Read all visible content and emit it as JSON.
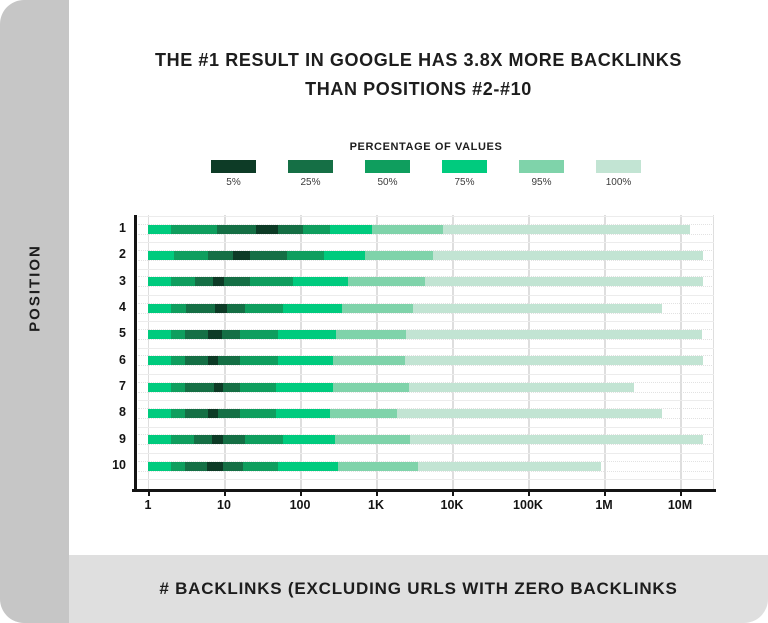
{
  "title": {
    "line1": "THE #1 RESULT IN GOOGLE HAS 3.8X MORE BACKLINKS",
    "line2": "THAN POSITIONS #2-#10"
  },
  "sidebar": {
    "label": "POSITION"
  },
  "footer": {
    "label": "# BACKLINKS (EXCLUDING URLS WITH ZERO BACKLINKS"
  },
  "legend": {
    "title": "PERCENTAGE OF VALUES",
    "items": [
      {
        "label": "5%",
        "color": "#0d3b26"
      },
      {
        "label": "25%",
        "color": "#156f45"
      },
      {
        "label": "50%",
        "color": "#0f9e5e"
      },
      {
        "label": "75%",
        "color": "#00cb7e"
      },
      {
        "label": "95%",
        "color": "#7fd3aa"
      },
      {
        "label": "100%",
        "color": "#c2e4d3"
      }
    ]
  },
  "chart_data": {
    "type": "bar",
    "variant": "nested-percentile-range-bars",
    "title": "THE #1 RESULT IN GOOGLE HAS 3.8X MORE BACKLINKS THAN POSITIONS #2-#10",
    "xlabel": "# BACKLINKS (EXCLUDING URLS WITH ZERO BACKLINKS",
    "ylabel": "POSITION",
    "x_scale": "log",
    "xlim": [
      1,
      31000000
    ],
    "grid": "vertical-decades",
    "legend_position": "top-center",
    "x_ticks": [
      {
        "label": "1",
        "value": 1
      },
      {
        "label": "10",
        "value": 10
      },
      {
        "label": "100",
        "value": 100
      },
      {
        "label": "1K",
        "value": 1000
      },
      {
        "label": "10K",
        "value": 10000
      },
      {
        "label": "100K",
        "value": 100000
      },
      {
        "label": "1M",
        "value": 1000000
      },
      {
        "label": "10M",
        "value": 10000000
      }
    ],
    "segment_band_order": [
      "75%",
      "50%",
      "25%",
      "5%",
      "25%",
      "50%",
      "75%",
      "95%",
      "100%"
    ],
    "rows": [
      {
        "position": "1",
        "band_boundaries": [
          1,
          2,
          8,
          26,
          51,
          110,
          250,
          890,
          7600,
          13500000
        ]
      },
      {
        "position": "2",
        "band_boundaries": [
          1,
          2.2,
          6.2,
          13,
          22,
          67,
          210,
          720,
          5700,
          20000000
        ]
      },
      {
        "position": "3",
        "band_boundaries": [
          1,
          2,
          4.2,
          7.2,
          10,
          22,
          82,
          430,
          4400,
          20000000
        ]
      },
      {
        "position": "4",
        "band_boundaries": [
          1,
          2,
          3.2,
          7.6,
          11,
          19,
          60,
          360,
          3100,
          5800000
        ]
      },
      {
        "position": "5",
        "band_boundaries": [
          1,
          2,
          3.1,
          6.2,
          9.3,
          16,
          52,
          300,
          2500,
          19500000
        ]
      },
      {
        "position": "6",
        "band_boundaries": [
          1,
          2,
          3.1,
          6.2,
          8.4,
          16,
          52,
          270,
          2400,
          20000000
        ]
      },
      {
        "position": "7",
        "band_boundaries": [
          1,
          2,
          3.1,
          7.4,
          9.8,
          16,
          49,
          270,
          2700,
          2500000
        ]
      },
      {
        "position": "8",
        "band_boundaries": [
          1,
          2,
          3.1,
          6.2,
          8.4,
          16,
          49,
          250,
          1900,
          5800000
        ]
      },
      {
        "position": "9",
        "band_boundaries": [
          1,
          2,
          4,
          6.9,
          9.8,
          19,
          60,
          290,
          2800,
          20000000
        ]
      },
      {
        "position": "10",
        "band_boundaries": [
          1,
          2,
          3.1,
          5.9,
          9.8,
          18,
          52,
          320,
          3600,
          900000
        ]
      }
    ]
  }
}
